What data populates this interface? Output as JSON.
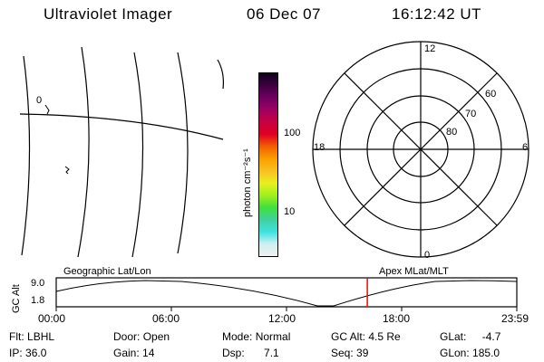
{
  "header": {
    "instrument": "Ultraviolet Imager",
    "date": "06 Dec 07",
    "time": "16:12:42 UT"
  },
  "map_panel": {
    "contour_label": "0"
  },
  "colorbar": {
    "unit_label": "photon cm⁻²s⁻¹",
    "ticks": [
      "100",
      "10"
    ],
    "colors": [
      "#f0f0f0",
      "#d0eef0",
      "#40e0e0",
      "#40d0a0",
      "#40e040",
      "#a0f020",
      "#e8f020",
      "#f8c020",
      "#f8a000",
      "#f06000",
      "#e00020",
      "#c80040",
      "#a00060",
      "#700060",
      "#400040",
      "#100020"
    ]
  },
  "polar_plot": {
    "mlt_labels": {
      "top": "12",
      "left": "18",
      "right": "6",
      "bottom": "0"
    },
    "lat_labels": [
      "80",
      "70",
      "60"
    ]
  },
  "timeline": {
    "ylabel": "GC Alt",
    "yticks": [
      "9.0",
      "1.8"
    ],
    "left_title": "Geographic Lat/Lon",
    "right_title": "Apex MLat/MLT",
    "xticks": [
      "00:00",
      "06:00",
      "12:00",
      "18:00",
      "23:59"
    ],
    "marker_time_hours": 16.21,
    "marker_color": "#ff0000"
  },
  "footer": {
    "row1": {
      "filter_label": "Flt:",
      "filter_value": "LBHL",
      "door_label": "Door:",
      "door_value": "Open",
      "mode_label": "Mode:",
      "mode_value": "Normal",
      "gcalt_label": "GC Alt:",
      "gcalt_value": "4.5 Re",
      "glat_label": "GLat:",
      "glat_value": "-4.7"
    },
    "row2": {
      "ip_label": "IP:",
      "ip_value": "36.0",
      "gain_label": "Gain:",
      "gain_value": "14",
      "dsp_label": "Dsp:",
      "dsp_value": "7.1",
      "seq_label": "Seq:",
      "seq_value": "39",
      "glon_label": "GLon:",
      "glon_value": "185.0"
    }
  }
}
